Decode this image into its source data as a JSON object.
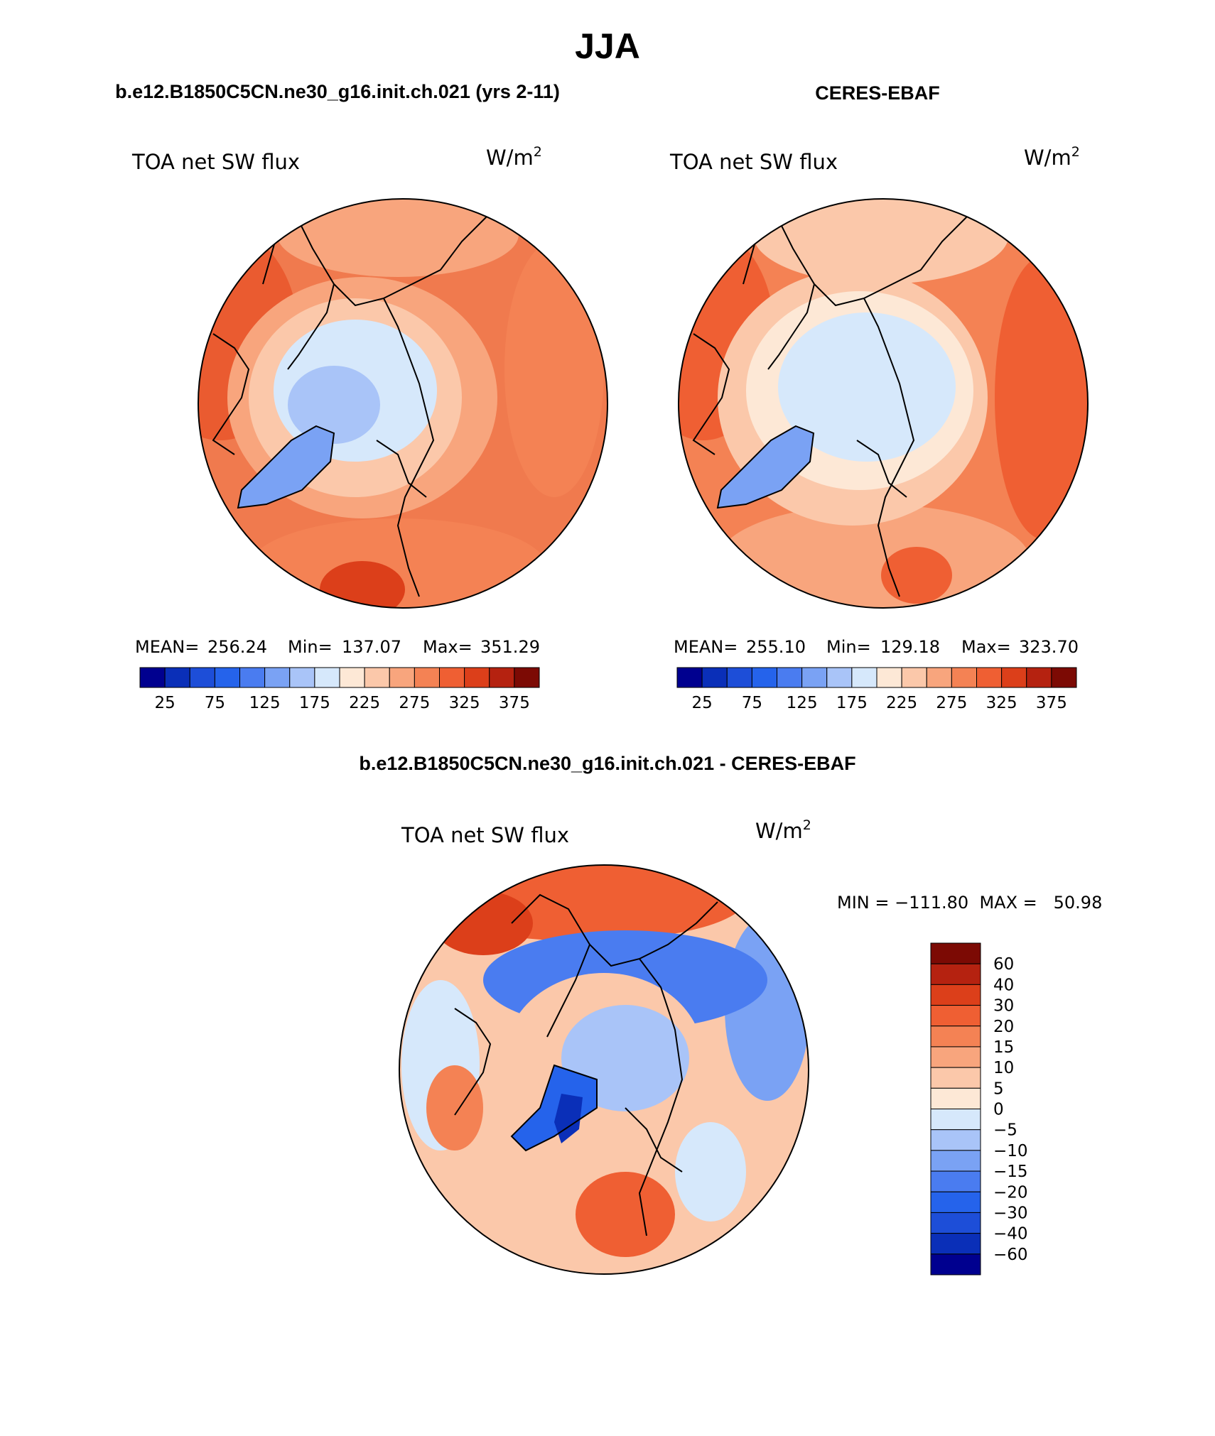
{
  "page_title": "JJA",
  "chart_data": [
    {
      "type": "heatmap",
      "projection": "north polar stereographic",
      "panel_title": "b.e12.B1850C5CN.ne30_g16.init.ch.021 (yrs 2-11)",
      "variable": "TOA net SW flux",
      "units": "W/m",
      "units_sup": "2",
      "stats": {
        "mean": "256.24",
        "min": "137.07",
        "max": "351.29"
      },
      "stats_labels": {
        "mean": "MEAN=",
        "min": "Min=",
        "max": "Max="
      },
      "colorbar_orientation": "horizontal",
      "colorbar_colors": [
        "#00008f",
        "#0a2fb8",
        "#1d4ed8",
        "#2563eb",
        "#4a7cf0",
        "#7aa2f4",
        "#a9c4f8",
        "#d6e8fb",
        "#fde8d6",
        "#fbc8aa",
        "#f8a57d",
        "#f48254",
        "#ef5f33",
        "#dc3f1a",
        "#b52210",
        "#7c0a04"
      ],
      "colorbar_ticks": [
        "25",
        "75",
        "125",
        "175",
        "225",
        "275",
        "325",
        "375"
      ]
    },
    {
      "type": "heatmap",
      "projection": "north polar stereographic",
      "panel_title": "CERES-EBAF",
      "variable": "TOA net SW flux",
      "units": "W/m",
      "units_sup": "2",
      "stats": {
        "mean": "255.10",
        "min": "129.18",
        "max": "323.70"
      },
      "stats_labels": {
        "mean": "MEAN=",
        "min": "Min=",
        "max": "Max="
      },
      "colorbar_orientation": "horizontal",
      "colorbar_colors": [
        "#00008f",
        "#0a2fb8",
        "#1d4ed8",
        "#2563eb",
        "#4a7cf0",
        "#7aa2f4",
        "#a9c4f8",
        "#d6e8fb",
        "#fde8d6",
        "#fbc8aa",
        "#f8a57d",
        "#f48254",
        "#ef5f33",
        "#dc3f1a",
        "#b52210",
        "#7c0a04"
      ],
      "colorbar_ticks": [
        "25",
        "75",
        "125",
        "175",
        "225",
        "275",
        "325",
        "375"
      ]
    },
    {
      "type": "heatmap",
      "projection": "north polar stereographic",
      "panel_title": "b.e12.B1850C5CN.ne30_g16.init.ch.021 - CERES-EBAF",
      "variable": "TOA net SW flux",
      "units": "W/m",
      "units_sup": "2",
      "minmax_text": "MIN = −111.80  MAX =   50.98",
      "colorbar_orientation": "vertical",
      "colorbar_colors": [
        "#7c0a04",
        "#b52210",
        "#dc3f1a",
        "#ef5f33",
        "#f48254",
        "#f8a57d",
        "#fbc8aa",
        "#fde8d6",
        "#d6e8fb",
        "#a9c4f8",
        "#7aa2f4",
        "#4a7cf0",
        "#2563eb",
        "#1d4ed8",
        "#0a2fb8",
        "#00008f"
      ],
      "colorbar_ticks": [
        "60",
        "40",
        "30",
        "20",
        "15",
        "10",
        "5",
        "0",
        "−5",
        "−10",
        "−15",
        "−20",
        "−30",
        "−40",
        "−60"
      ]
    }
  ]
}
